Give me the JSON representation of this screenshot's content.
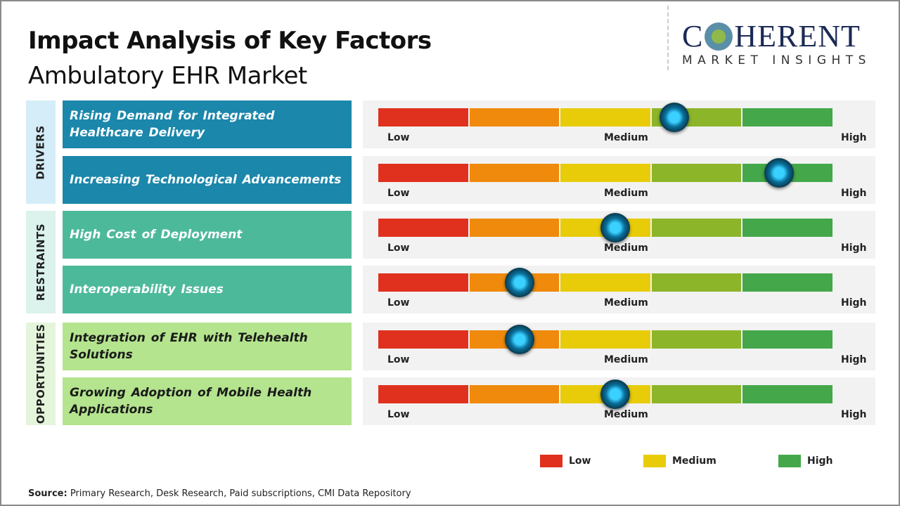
{
  "title": "Impact Analysis of Key Factors",
  "subtitle": "Ambulatory EHR Market",
  "logo": {
    "main_left": "C",
    "main_right": "HERENT",
    "tagline": "MARKET INSIGHTS"
  },
  "scale_labels": {
    "low": "Low",
    "medium": "Medium",
    "high": "High"
  },
  "colors": {
    "scale": [
      "#e0311e",
      "#ef8a0c",
      "#e8cc0a",
      "#8cb52a",
      "#44a84a"
    ],
    "drivers": "#1b87ab",
    "restraints": "#4db99b",
    "opportunities": "#b4e48e"
  },
  "chart_data": {
    "type": "gauge-table",
    "value_range": [
      "Low",
      "High"
    ],
    "categories": [
      {
        "name": "DRIVERS",
        "factors": [
          {
            "label": "Rising Demand for Integrated Healthcare Delivery",
            "impact": 0.65
          },
          {
            "label": "Increasing Technological Advancements",
            "impact": 0.88
          }
        ]
      },
      {
        "name": "RESTRAINTS",
        "factors": [
          {
            "label": "High Cost of Deployment",
            "impact": 0.52
          },
          {
            "label": "Interoperability Issues",
            "impact": 0.31
          }
        ]
      },
      {
        "name": "OPPORTUNITIES",
        "factors": [
          {
            "label": "Integration of EHR with Telehealth Solutions",
            "impact": 0.31
          },
          {
            "label": "Growing Adoption of Mobile Health Applications",
            "impact": 0.52
          }
        ]
      }
    ],
    "legend": [
      "Low",
      "Medium",
      "High"
    ]
  },
  "source_label": "Source:",
  "source_text": " Primary Research, Desk Research, Paid subscriptions, CMI Data Repository"
}
